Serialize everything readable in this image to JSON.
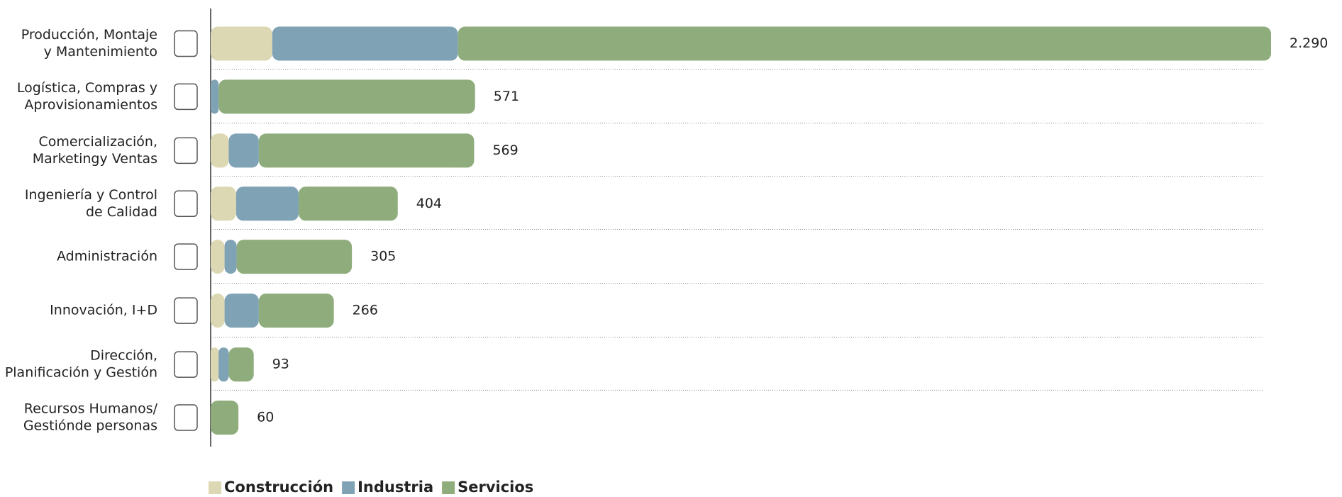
{
  "chart_data": {
    "type": "stacked-bar-horizontal",
    "categories": [
      [
        "Producción, Montaje",
        "y Mantenimiento"
      ],
      [
        "Logística, Compras y",
        "Aprovisionamientos"
      ],
      [
        "Comercialización,",
        "Marketingy Ventas"
      ],
      [
        "Ingeniería y Control",
        "de Calidad"
      ],
      [
        "Administración"
      ],
      [
        "Innovación, I+D"
      ],
      [
        "Dirección,",
        "Planificación y Gestión"
      ],
      [
        "Recursos Humanos/",
        "Gestiónde personas"
      ]
    ],
    "series": [
      {
        "name": "Construcción",
        "color": "#ddd8b4",
        "values": [
          133,
          0,
          39,
          55,
          30,
          30,
          17,
          0
        ]
      },
      {
        "name": "Industria",
        "color": "#7fa2b5",
        "values": [
          401,
          17,
          65,
          135,
          26,
          74,
          22,
          0
        ]
      },
      {
        "name": "Servicios",
        "color": "#8fad7c",
        "values": [
          1756,
          554,
          465,
          214,
          249,
          162,
          54,
          60
        ]
      }
    ],
    "totals": {
      "values": [
        2290,
        571,
        569,
        404,
        305,
        266,
        93,
        60
      ],
      "value_labels": [
        "2.290",
        "571",
        "569",
        "404",
        "305",
        "266",
        "93",
        "60"
      ]
    },
    "xlim": [
      0,
      2290
    ],
    "legend": "bottom-left"
  }
}
